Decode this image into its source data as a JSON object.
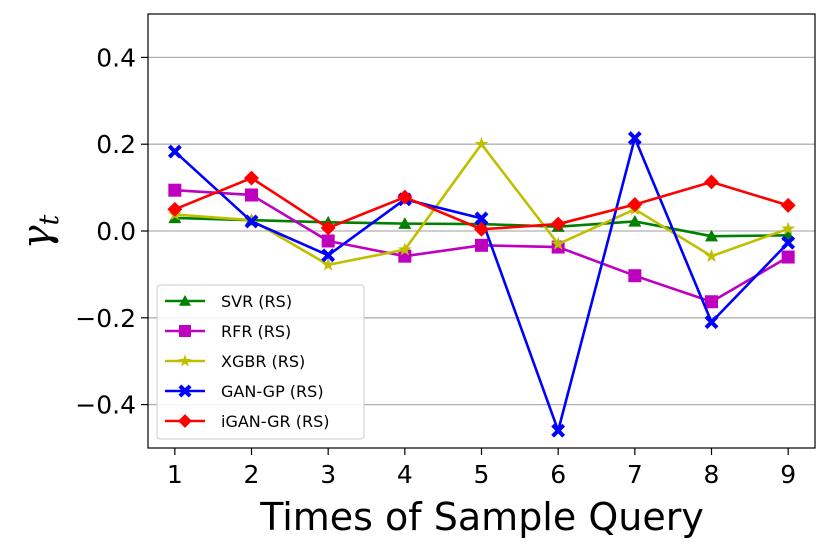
{
  "chart_data": {
    "type": "line",
    "title": "",
    "xlabel": "Times of Sample Query",
    "ylabel": "γ",
    "ylabel_sub": "t",
    "x": [
      1,
      2,
      3,
      4,
      5,
      6,
      7,
      8,
      9
    ],
    "x_ticks": [
      "1",
      "2",
      "3",
      "4",
      "5",
      "6",
      "7",
      "8",
      "9"
    ],
    "y_ticks": [
      "0.4",
      "0.2",
      "0.0",
      "−0.2",
      "−0.4"
    ],
    "y_tick_values": [
      0.4,
      0.2,
      0.0,
      -0.2,
      -0.4
    ],
    "xlim": [
      0.65,
      9.35
    ],
    "ylim": [
      -0.5,
      0.5
    ],
    "grid": "horizontal",
    "legend_position": "lower-left",
    "series": [
      {
        "name": "SVR (RS)",
        "color": "#008000",
        "marker": "triangle",
        "values": [
          0.03,
          0.025,
          0.02,
          0.017,
          0.016,
          0.01,
          0.022,
          -0.012,
          -0.01
        ]
      },
      {
        "name": "RFR (RS)",
        "color": "#bf00bf",
        "marker": "square",
        "values": [
          0.094,
          0.083,
          -0.023,
          -0.058,
          -0.033,
          -0.037,
          -0.103,
          -0.163,
          -0.06
        ]
      },
      {
        "name": "XGBR (RS)",
        "color": "#bfbf00",
        "marker": "star",
        "values": [
          0.038,
          0.025,
          -0.078,
          -0.043,
          0.2,
          -0.03,
          0.05,
          -0.058,
          0.005
        ]
      },
      {
        "name": "GAN-GP (RS)",
        "color": "#0000ff",
        "marker": "x",
        "values": [
          0.183,
          0.022,
          -0.056,
          0.073,
          0.029,
          -0.46,
          0.214,
          -0.21,
          -0.027
        ]
      },
      {
        "name": "iGAN-GR (RS)",
        "color": "#ff0000",
        "marker": "diamond",
        "values": [
          0.05,
          0.122,
          0.007,
          0.078,
          0.004,
          0.016,
          0.061,
          0.113,
          0.059
        ]
      }
    ]
  }
}
